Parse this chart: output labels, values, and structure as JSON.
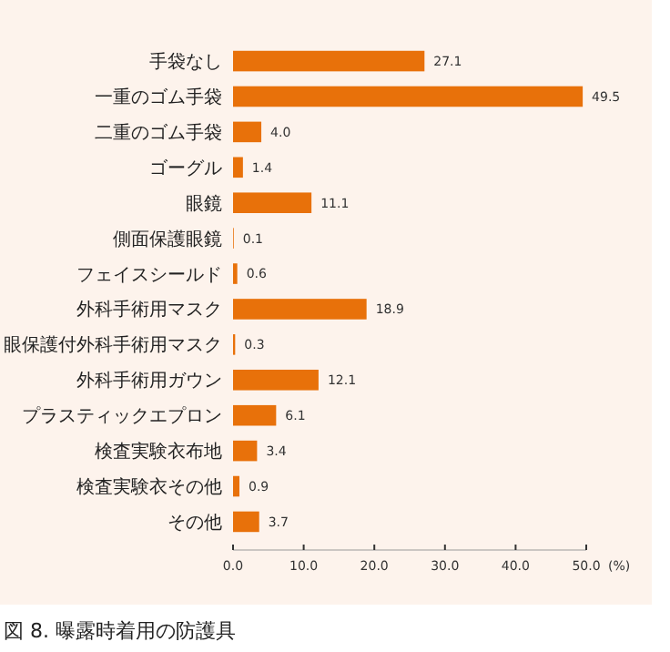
{
  "chart_data": {
    "type": "bar",
    "orientation": "horizontal",
    "xlabel": "(%)",
    "annotations": [
      "図 8. 曝露時着用の防護具"
    ],
    "categories": [
      "手袋なし",
      "一重のゴム手袋",
      "二重のゴム手袋",
      "ゴーグル",
      "眼鏡",
      "側面保護眼鏡",
      "フェイスシールド",
      "外科手術用マスク",
      "眼保護付外科手術用マスク",
      "外科手術用ガウン",
      "プラスティックエプロン",
      "検査実験衣布地",
      "検査実験衣その他",
      "その他"
    ],
    "values": [
      27.1,
      49.5,
      4.0,
      1.4,
      11.1,
      0.1,
      0.6,
      18.9,
      0.3,
      12.1,
      6.1,
      3.4,
      0.9,
      3.7
    ],
    "value_labels": [
      "27.1",
      "49.5",
      "4.0",
      "1.4",
      "11.1",
      "0.1",
      "0.6",
      "18.9",
      "0.3",
      "12.1",
      "6.1",
      "3.4",
      "0.9",
      "3.7"
    ],
    "color": "#e8710a",
    "xlim": [
      0,
      50
    ],
    "xticks": [
      {
        "value": 0,
        "label": "0.0"
      },
      {
        "value": 10,
        "label": "10.0"
      },
      {
        "value": 20,
        "label": "20.0"
      },
      {
        "value": 30,
        "label": "30.0"
      },
      {
        "value": 40,
        "label": "40.0"
      },
      {
        "value": 50,
        "label": "50.0"
      }
    ],
    "grid": false
  }
}
